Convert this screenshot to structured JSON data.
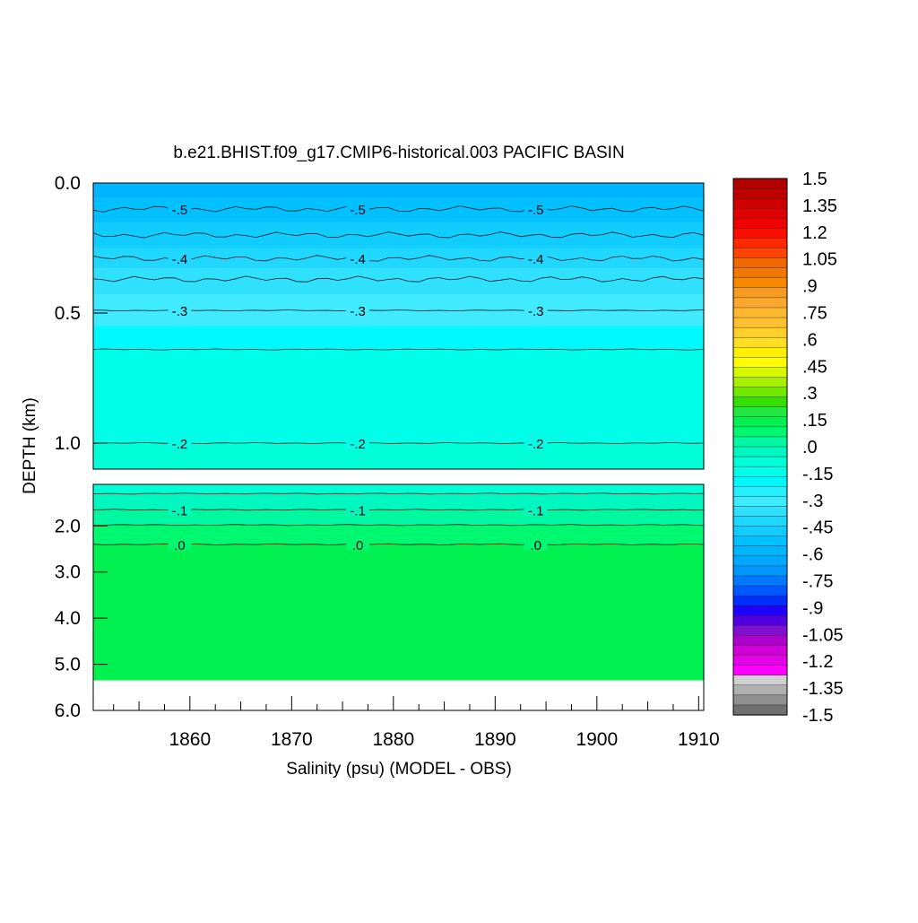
{
  "chart_data": {
    "type": "heatmap",
    "title": "b.e21.BHIST.f09_g17.CMIP6-historical.003 PACIFIC BASIN",
    "xlabel": "Salinity (psu) (MODEL - OBS)",
    "ylabel": "DEPTH (km)",
    "xlim": [
      1850.5,
      1910.5
    ],
    "x_ticks": [
      "1860",
      "1870",
      "1880",
      "1890",
      "1900",
      "1910"
    ],
    "x_tick_values": [
      1860,
      1870,
      1880,
      1890,
      1900,
      1910
    ],
    "upper_panel": {
      "ylim": [
        0.0,
        1.1
      ],
      "y_ticks": [
        "0.0",
        "0.5",
        "1.0"
      ],
      "y_tick_values": [
        0.0,
        0.5,
        1.0
      ]
    },
    "lower_panel": {
      "ylim": [
        1.1,
        6.0
      ],
      "y_ticks": [
        "2.0",
        "3.0",
        "4.0",
        "5.0",
        "6.0"
      ],
      "y_tick_values": [
        2.0,
        3.0,
        4.0,
        5.0,
        6.0
      ],
      "ocean_floor_depth": 5.35
    },
    "contour_lines": [
      {
        "level": -0.5,
        "label": "-.5",
        "depth": 0.1
      },
      {
        "level": -0.45,
        "label": "",
        "depth": 0.2
      },
      {
        "level": -0.4,
        "label": "-.4",
        "depth": 0.29
      },
      {
        "level": -0.35,
        "label": "",
        "depth": 0.37
      },
      {
        "level": -0.3,
        "label": "-.3",
        "depth": 0.49
      },
      {
        "level": -0.25,
        "label": "",
        "depth": 0.64
      },
      {
        "level": -0.2,
        "label": "-.2",
        "depth": 1.0
      },
      {
        "level": -0.15,
        "label": "",
        "depth": 1.3
      },
      {
        "level": -0.1,
        "label": "-.1",
        "depth": 1.65
      },
      {
        "level": -0.05,
        "label": "",
        "depth": 1.98
      },
      {
        "level": 0.0,
        "label": ".0",
        "depth": 2.4
      }
    ],
    "contour_label_x": [
      1859,
      1876.5,
      1894
    ],
    "colorbar": {
      "min": -1.5,
      "max": 1.5,
      "step": 0.075,
      "labels": [
        "1.5",
        "1.35",
        "1.2",
        "1.05",
        ".9",
        ".75",
        ".6",
        ".45",
        ".3",
        ".15",
        ".0",
        "-.15",
        "-.3",
        "-.45",
        "-.6",
        "-.75",
        "-.9",
        "-1.05",
        "-1.2",
        "-1.35",
        "-1.5"
      ],
      "colors": [
        "#b00000",
        "#c00000",
        "#d00000",
        "#e00000",
        "#f00000",
        "#ff0c00",
        "#ff2800",
        "#ff4400",
        "#f06800",
        "#f07800",
        "#f58a00",
        "#f89a20",
        "#fca830",
        "#fdb830",
        "#ffc030",
        "#ffd028",
        "#ffe020",
        "#ffef00",
        "#ffff00",
        "#d6f800",
        "#a8f000",
        "#70e800",
        "#33e000",
        "#20e840",
        "#00f050",
        "#00f870",
        "#00f8a0",
        "#00f8c0",
        "#00ffd6",
        "#00ffe8",
        "#00f8ff",
        "#20f0ff",
        "#40eaff",
        "#30e0ff",
        "#20d8ff",
        "#10ccff",
        "#00c0ff",
        "#00b4ff",
        "#00a8ff",
        "#0098ff",
        "#0078ff",
        "#0058ff",
        "#0030ff",
        "#2000ff",
        "#5000e0",
        "#8010d0",
        "#b000d0",
        "#d000d8",
        "#e800e8",
        "#ff00ff",
        "#d0d0d0",
        "#b0b0b0",
        "#909090",
        "#707070"
      ]
    },
    "field_colors": [
      {
        "top": 0.0,
        "bottom": 0.06,
        "color": "#00b4ff"
      },
      {
        "top": 0.06,
        "bottom": 0.15,
        "color": "#00c0ff"
      },
      {
        "top": 0.15,
        "bottom": 0.25,
        "color": "#10ccff"
      },
      {
        "top": 0.25,
        "bottom": 0.33,
        "color": "#20d8ff"
      },
      {
        "top": 0.33,
        "bottom": 0.43,
        "color": "#30e0ff"
      },
      {
        "top": 0.43,
        "bottom": 0.55,
        "color": "#40eaff"
      },
      {
        "top": 0.55,
        "bottom": 0.64,
        "color": "#00f8ff"
      },
      {
        "top": 0.64,
        "bottom": 1.0,
        "color": "#00ffe8"
      },
      {
        "top": 1.0,
        "bottom": 1.3,
        "color": "#00ffd6"
      },
      {
        "top": 1.3,
        "bottom": 1.65,
        "color": "#00f8c0"
      },
      {
        "top": 1.65,
        "bottom": 1.98,
        "color": "#00f8a0"
      },
      {
        "top": 1.98,
        "bottom": 2.4,
        "color": "#00f870"
      },
      {
        "top": 2.4,
        "bottom": 5.35,
        "color": "#00f050"
      }
    ]
  }
}
